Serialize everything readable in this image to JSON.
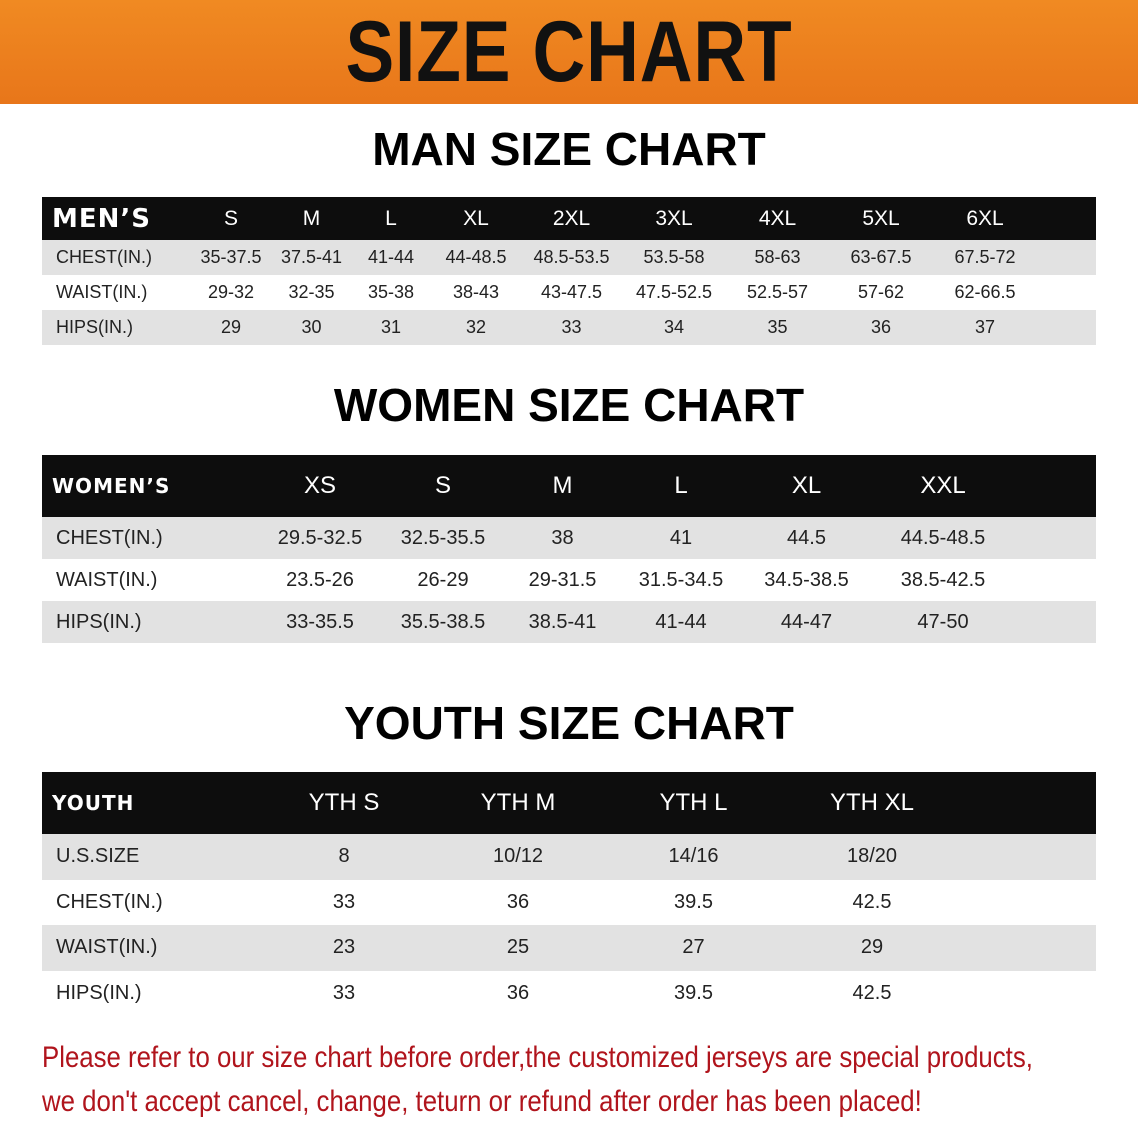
{
  "banner_title": "SIZE CHART",
  "accent_color": "#ef7f1a",
  "note_color": "#b0141c",
  "men": {
    "title": "MAN SIZE CHART",
    "header_label": "MEN’S",
    "sizes": [
      "S",
      "M",
      "L",
      "XL",
      "2XL",
      "3XL",
      "4XL",
      "5XL",
      "6XL"
    ],
    "rows": [
      {
        "label": "CHEST(IN.)",
        "values": [
          "35-37.5",
          "37.5-41",
          "41-44",
          "44-48.5",
          "48.5-53.5",
          "53.5-58",
          "58-63",
          "63-67.5",
          "67.5-72"
        ]
      },
      {
        "label": "WAIST(IN.)",
        "values": [
          "29-32",
          "32-35",
          "35-38",
          "38-43",
          "43-47.5",
          "47.5-52.5",
          "52.5-57",
          "57-62",
          "62-66.5"
        ]
      },
      {
        "label": "HIPS(IN.)",
        "values": [
          "29",
          "30",
          "31",
          "32",
          "33",
          "34",
          "35",
          "36",
          "37"
        ]
      }
    ]
  },
  "women": {
    "title": "WOMEN SIZE CHART",
    "header_label": "WOMEN’S",
    "sizes": [
      "XS",
      "S",
      "M",
      "L",
      "XL",
      "XXL"
    ],
    "rows": [
      {
        "label": "CHEST(IN.)",
        "values": [
          "29.5-32.5",
          "32.5-35.5",
          "38",
          "41",
          "44.5",
          "44.5-48.5"
        ]
      },
      {
        "label": "WAIST(IN.)",
        "values": [
          "23.5-26",
          "26-29",
          "29-31.5",
          "31.5-34.5",
          "34.5-38.5",
          "38.5-42.5"
        ]
      },
      {
        "label": "HIPS(IN.)",
        "values": [
          "33-35.5",
          "35.5-38.5",
          "38.5-41",
          "41-44",
          "44-47",
          "47-50"
        ]
      }
    ]
  },
  "youth": {
    "title": "YOUTH SIZE CHART",
    "header_label": "YOUTH",
    "sizes": [
      "YTH S",
      "YTH M",
      "YTH L",
      "YTH XL"
    ],
    "rows": [
      {
        "label": "U.S.SIZE",
        "values": [
          "8",
          "10/12",
          "14/16",
          "18/20"
        ]
      },
      {
        "label": "CHEST(IN.)",
        "values": [
          "33",
          "36",
          "39.5",
          "42.5"
        ]
      },
      {
        "label": "WAIST(IN.)",
        "values": [
          "23",
          "25",
          "27",
          "29"
        ]
      },
      {
        "label": "HIPS(IN.)",
        "values": [
          "33",
          "36",
          "39.5",
          "42.5"
        ]
      }
    ]
  },
  "note": [
    "Please refer to our size chart before order,the customized jerseys are special products,",
    "we don't accept cancel, change, teturn or refund after order has been placed!"
  ]
}
